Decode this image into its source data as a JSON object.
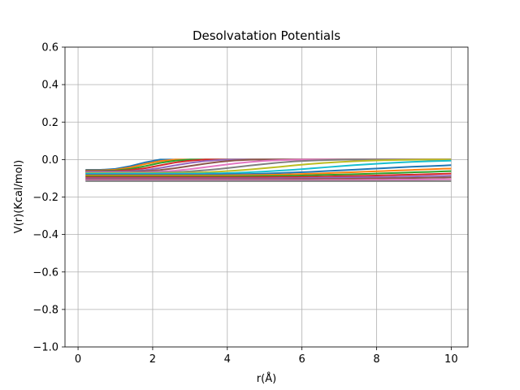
{
  "chart_data": {
    "type": "line",
    "title": "Desolvatation Potentials",
    "xlabel": "r(Å)",
    "ylabel": "V(r)(Kcal/mol)",
    "xlim": [
      -0.35,
      10.45
    ],
    "ylim": [
      -1.0,
      0.6
    ],
    "xticks": [
      0,
      2,
      4,
      6,
      8,
      10
    ],
    "xtick_labels": [
      "0",
      "2",
      "4",
      "6",
      "8",
      "10"
    ],
    "yticks": [
      -1.0,
      -0.8,
      -0.6,
      -0.4,
      -0.2,
      0.0,
      0.2,
      0.4,
      0.6
    ],
    "ytick_labels": [
      "−1.0",
      "−0.8",
      "−0.6",
      "−0.4",
      "−0.2",
      "0.0",
      "0.2",
      "0.4",
      "0.6"
    ],
    "grid": true,
    "colors": [
      "#1f77b4",
      "#ff7f0e",
      "#2ca02c",
      "#d62728",
      "#9467bd",
      "#8c564b",
      "#e377c2",
      "#7f7f7f",
      "#bcbd22",
      "#17becf"
    ],
    "x": [
      0.2,
      0.6,
      1.0,
      1.4,
      1.8,
      2.2,
      2.6,
      3.0,
      3.4,
      3.8,
      4.2,
      4.6,
      5.0,
      5.4,
      5.8,
      6.2,
      6.6,
      7.0,
      7.4,
      7.8,
      8.2,
      8.6,
      9.0,
      9.4,
      9.8,
      10.0
    ],
    "series": [
      {
        "values": [
          -0.055,
          -0.055,
          -0.05,
          -0.035,
          -0.015,
          0.0,
          0.0,
          0.0,
          0.0,
          0.0,
          0.0,
          0.0,
          0.0,
          0.0,
          0.0,
          0.0,
          0.0,
          0.0,
          0.0,
          0.0,
          0.0,
          0.0,
          0.0,
          0.0,
          0.0,
          0.0
        ]
      },
      {
        "values": [
          -0.058,
          -0.058,
          -0.054,
          -0.042,
          -0.024,
          -0.008,
          0.0,
          0.0,
          0.0,
          0.0,
          0.0,
          0.0,
          0.0,
          0.0,
          0.0,
          0.0,
          0.0,
          0.0,
          0.0,
          0.0,
          0.0,
          0.0,
          0.0,
          0.0,
          0.0,
          0.0
        ]
      },
      {
        "values": [
          -0.06,
          -0.06,
          -0.058,
          -0.05,
          -0.035,
          -0.018,
          -0.006,
          0.0,
          0.0,
          0.0,
          0.0,
          0.0,
          0.0,
          0.0,
          0.0,
          0.0,
          0.0,
          0.0,
          0.0,
          0.0,
          0.0,
          0.0,
          0.0,
          0.0,
          0.0,
          0.0
        ]
      },
      {
        "values": [
          -0.062,
          -0.062,
          -0.061,
          -0.056,
          -0.046,
          -0.031,
          -0.016,
          -0.006,
          0.0,
          0.0,
          0.0,
          0.0,
          0.0,
          0.0,
          0.0,
          0.0,
          0.0,
          0.0,
          0.0,
          0.0,
          0.0,
          0.0,
          0.0,
          0.0,
          0.0,
          0.0
        ]
      },
      {
        "values": [
          -0.064,
          -0.064,
          -0.064,
          -0.062,
          -0.056,
          -0.045,
          -0.031,
          -0.018,
          -0.008,
          -0.002,
          0.0,
          0.0,
          0.0,
          0.0,
          0.0,
          0.0,
          0.0,
          0.0,
          0.0,
          0.0,
          0.0,
          0.0,
          0.0,
          0.0,
          0.0,
          0.0
        ]
      },
      {
        "values": [
          -0.066,
          -0.066,
          -0.066,
          -0.065,
          -0.062,
          -0.056,
          -0.046,
          -0.034,
          -0.022,
          -0.012,
          -0.005,
          -0.001,
          0.0,
          0.0,
          0.0,
          0.0,
          0.0,
          0.0,
          0.0,
          0.0,
          0.0,
          0.0,
          0.0,
          0.0,
          0.0,
          0.0
        ]
      },
      {
        "values": [
          -0.068,
          -0.068,
          -0.068,
          -0.068,
          -0.067,
          -0.064,
          -0.059,
          -0.051,
          -0.041,
          -0.031,
          -0.021,
          -0.013,
          -0.007,
          -0.003,
          -0.001,
          0.0,
          0.0,
          0.0,
          0.0,
          0.0,
          0.0,
          0.0,
          0.0,
          0.0,
          0.0,
          0.0
        ]
      },
      {
        "values": [
          -0.07,
          -0.07,
          -0.07,
          -0.07,
          -0.07,
          -0.069,
          -0.067,
          -0.063,
          -0.057,
          -0.05,
          -0.041,
          -0.032,
          -0.024,
          -0.016,
          -0.01,
          -0.006,
          -0.003,
          -0.001,
          0.0,
          0.0,
          0.0,
          0.0,
          0.0,
          0.0,
          0.0,
          0.0
        ]
      },
      {
        "values": [
          -0.072,
          -0.072,
          -0.072,
          -0.072,
          -0.072,
          -0.072,
          -0.071,
          -0.07,
          -0.068,
          -0.064,
          -0.059,
          -0.053,
          -0.046,
          -0.039,
          -0.031,
          -0.024,
          -0.018,
          -0.013,
          -0.009,
          -0.006,
          -0.004,
          -0.002,
          -0.001,
          0.0,
          0.0,
          0.0
        ]
      },
      {
        "values": [
          -0.075,
          -0.075,
          -0.075,
          -0.075,
          -0.075,
          -0.075,
          -0.075,
          -0.075,
          -0.074,
          -0.073,
          -0.071,
          -0.068,
          -0.064,
          -0.059,
          -0.054,
          -0.048,
          -0.042,
          -0.036,
          -0.03,
          -0.025,
          -0.02,
          -0.016,
          -0.012,
          -0.009,
          -0.007,
          -0.006
        ]
      },
      {
        "values": [
          -0.08,
          -0.08,
          -0.08,
          -0.08,
          -0.08,
          -0.08,
          -0.08,
          -0.08,
          -0.08,
          -0.079,
          -0.078,
          -0.077,
          -0.075,
          -0.072,
          -0.069,
          -0.066,
          -0.062,
          -0.058,
          -0.054,
          -0.05,
          -0.046,
          -0.042,
          -0.038,
          -0.035,
          -0.032,
          -0.03
        ]
      },
      {
        "values": [
          -0.085,
          -0.085,
          -0.085,
          -0.085,
          -0.085,
          -0.085,
          -0.085,
          -0.085,
          -0.085,
          -0.085,
          -0.084,
          -0.083,
          -0.082,
          -0.08,
          -0.078,
          -0.076,
          -0.073,
          -0.07,
          -0.067,
          -0.064,
          -0.061,
          -0.058,
          -0.055,
          -0.052,
          -0.049,
          -0.048
        ]
      },
      {
        "values": [
          -0.09,
          -0.09,
          -0.09,
          -0.09,
          -0.09,
          -0.09,
          -0.09,
          -0.09,
          -0.09,
          -0.09,
          -0.09,
          -0.089,
          -0.088,
          -0.087,
          -0.086,
          -0.084,
          -0.082,
          -0.08,
          -0.078,
          -0.076,
          -0.073,
          -0.071,
          -0.068,
          -0.066,
          -0.063,
          -0.062
        ]
      },
      {
        "values": [
          -0.095,
          -0.095,
          -0.095,
          -0.095,
          -0.095,
          -0.095,
          -0.095,
          -0.095,
          -0.095,
          -0.095,
          -0.095,
          -0.095,
          -0.094,
          -0.094,
          -0.093,
          -0.092,
          -0.091,
          -0.089,
          -0.088,
          -0.086,
          -0.084,
          -0.082,
          -0.08,
          -0.078,
          -0.076,
          -0.075
        ]
      },
      {
        "values": [
          -0.1,
          -0.1,
          -0.1,
          -0.1,
          -0.1,
          -0.1,
          -0.1,
          -0.1,
          -0.1,
          -0.1,
          -0.1,
          -0.1,
          -0.1,
          -0.099,
          -0.099,
          -0.098,
          -0.097,
          -0.096,
          -0.095,
          -0.094,
          -0.093,
          -0.091,
          -0.09,
          -0.088,
          -0.087,
          -0.086
        ]
      },
      {
        "values": [
          -0.105,
          -0.105,
          -0.105,
          -0.105,
          -0.105,
          -0.105,
          -0.105,
          -0.105,
          -0.105,
          -0.105,
          -0.105,
          -0.105,
          -0.105,
          -0.105,
          -0.104,
          -0.104,
          -0.103,
          -0.103,
          -0.102,
          -0.101,
          -0.1,
          -0.099,
          -0.098,
          -0.097,
          -0.096,
          -0.095
        ]
      },
      {
        "values": [
          -0.11,
          -0.11,
          -0.11,
          -0.11,
          -0.11,
          -0.11,
          -0.11,
          -0.11,
          -0.11,
          -0.11,
          -0.11,
          -0.11,
          -0.11,
          -0.11,
          -0.11,
          -0.11,
          -0.109,
          -0.109,
          -0.109,
          -0.108,
          -0.108,
          -0.107,
          -0.107,
          -0.106,
          -0.105,
          -0.105
        ]
      },
      {
        "values": [
          -0.115,
          -0.115,
          -0.115,
          -0.115,
          -0.115,
          -0.115,
          -0.115,
          -0.115,
          -0.115,
          -0.115,
          -0.115,
          -0.115,
          -0.115,
          -0.115,
          -0.115,
          -0.115,
          -0.115,
          -0.115,
          -0.115,
          -0.115,
          -0.115,
          -0.115,
          -0.115,
          -0.115,
          -0.115,
          -0.115
        ]
      }
    ]
  }
}
